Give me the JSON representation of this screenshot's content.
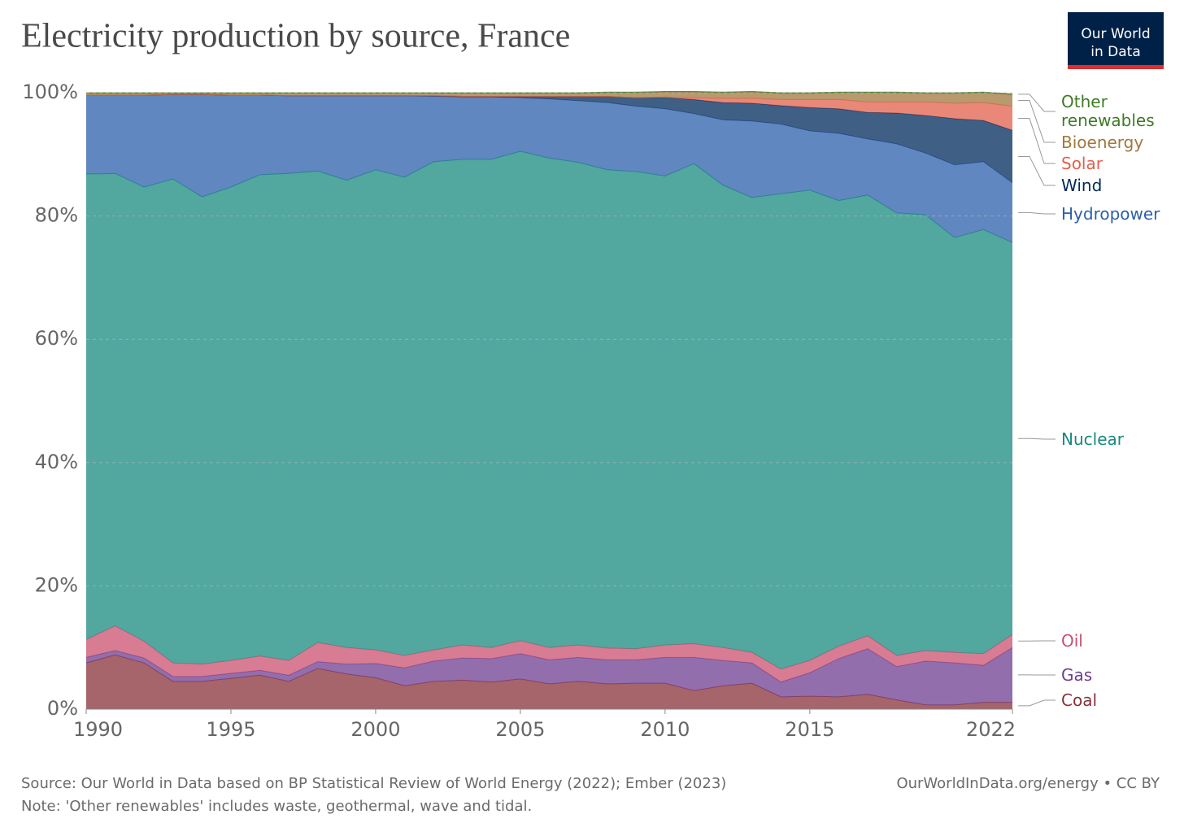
{
  "chart_data": {
    "type": "stacked_area",
    "title": "Electricity production by source, France",
    "logo": [
      "Our World",
      "in Data"
    ],
    "source": "Source: Our World in Data based on BP Statistical Review of World Energy (2022); Ember (2023)",
    "note": "Note: 'Other renewables' includes waste, geothermal, wave and tidal.",
    "credit": "OurWorldInData.org/energy • CC BY",
    "x": [
      1990,
      1991,
      1992,
      1993,
      1994,
      1995,
      1996,
      1997,
      1998,
      1999,
      2000,
      2001,
      2002,
      2003,
      2004,
      2005,
      2006,
      2007,
      2008,
      2009,
      2010,
      2011,
      2012,
      2013,
      2014,
      2015,
      2016,
      2017,
      2018,
      2019,
      2020,
      2021,
      2022
    ],
    "xlim": [
      1990,
      2022
    ],
    "xticks": [
      1990,
      1995,
      2000,
      2005,
      2010,
      2015,
      2022
    ],
    "ylim": [
      0,
      100
    ],
    "yticks": [
      {
        "value": 0,
        "label": "0%"
      },
      {
        "value": 20,
        "label": "20%"
      },
      {
        "value": 40,
        "label": "40%"
      },
      {
        "value": 60,
        "label": "60%"
      },
      {
        "value": 80,
        "label": "80%"
      },
      {
        "value": 100,
        "label": "100%"
      }
    ],
    "grid": true,
    "series": [
      {
        "name": "Coal",
        "color": "#883039",
        "values": [
          7.5,
          8.8,
          7.5,
          4.5,
          4.5,
          5.0,
          5.5,
          4.5,
          6.6,
          5.7,
          5.1,
          3.8,
          4.5,
          4.7,
          4.4,
          4.9,
          4.1,
          4.5,
          4.1,
          4.2,
          4.2,
          3.0,
          3.8,
          4.2,
          2.0,
          2.1,
          2.0,
          2.4,
          1.5,
          0.7,
          0.7,
          1.1,
          1.1
        ]
      },
      {
        "name": "Gas",
        "color": "#6d3e91",
        "values": [
          0.9,
          0.7,
          0.8,
          0.8,
          0.8,
          0.8,
          0.8,
          1.0,
          1.1,
          1.6,
          2.3,
          2.9,
          3.3,
          3.6,
          3.8,
          4.1,
          3.9,
          3.9,
          3.9,
          3.8,
          4.2,
          5.4,
          4.1,
          3.3,
          2.4,
          3.8,
          6.2,
          7.4,
          5.4,
          7.1,
          6.8,
          6.0,
          8.9
        ]
      },
      {
        "name": "Oil",
        "color": "#c9506f",
        "values": [
          2.9,
          4.0,
          2.7,
          2.2,
          2.0,
          2.1,
          2.3,
          2.4,
          3.1,
          2.7,
          2.2,
          2.0,
          1.8,
          2.1,
          1.8,
          2.1,
          2.0,
          2.0,
          1.9,
          1.8,
          2.0,
          2.2,
          2.1,
          1.7,
          2.1,
          2.0,
          2.0,
          2.1,
          1.8,
          1.7,
          1.7,
          1.9,
          2.1
        ]
      },
      {
        "name": "Nuclear",
        "color": "#18897f",
        "values": [
          75.5,
          73.4,
          73.7,
          78.5,
          75.8,
          76.8,
          78.1,
          79.0,
          76.5,
          75.8,
          77.9,
          77.6,
          79.2,
          78.8,
          79.2,
          79.4,
          79.4,
          78.3,
          77.6,
          77.4,
          76.1,
          77.9,
          75.0,
          73.8,
          77.1,
          76.3,
          72.3,
          71.5,
          71.8,
          70.7,
          67.3,
          68.8,
          63.6
        ]
      },
      {
        "name": "Hydropower",
        "color": "#2c5fab",
        "values": [
          12.8,
          12.7,
          14.9,
          13.7,
          16.6,
          14.9,
          12.9,
          12.6,
          12.2,
          13.7,
          12.0,
          13.2,
          10.6,
          10.1,
          10.1,
          8.7,
          9.6,
          10.0,
          10.9,
          10.6,
          10.9,
          8.1,
          10.6,
          12.4,
          11.3,
          9.6,
          10.9,
          9.1,
          11.2,
          10.0,
          11.8,
          11.0,
          9.7
        ]
      },
      {
        "name": "Wind",
        "color": "#00295b",
        "values": [
          0,
          0,
          0,
          0,
          0,
          0,
          0,
          0,
          0,
          0,
          0,
          0,
          0.1,
          0.1,
          0.1,
          0.2,
          0.4,
          0.7,
          1.0,
          1.4,
          1.8,
          2.3,
          2.8,
          2.9,
          3.0,
          3.8,
          4.0,
          4.3,
          5.0,
          6.1,
          7.5,
          6.7,
          8.5
        ]
      },
      {
        "name": "Solar",
        "color": "#e2604b",
        "values": [
          0,
          0,
          0,
          0,
          0,
          0,
          0,
          0,
          0,
          0,
          0,
          0,
          0,
          0,
          0,
          0,
          0,
          0,
          0,
          0,
          0.1,
          0.3,
          0.7,
          0.8,
          1.0,
          1.3,
          1.5,
          1.7,
          1.8,
          2.2,
          2.5,
          2.9,
          3.9
        ]
      },
      {
        "name": "Bioenergy",
        "color": "#a2773e",
        "values": [
          0.3,
          0.3,
          0.3,
          0.2,
          0.2,
          0.3,
          0.3,
          0.4,
          0.4,
          0.4,
          0.4,
          0.4,
          0.4,
          0.5,
          0.5,
          0.5,
          0.5,
          0.5,
          0.6,
          0.8,
          0.8,
          0.9,
          0.9,
          1.0,
          1.0,
          1.0,
          1.1,
          1.5,
          1.5,
          1.4,
          1.6,
          1.6,
          1.9
        ]
      },
      {
        "name": "Other renewables",
        "color": "#3f7a26",
        "values": [
          0.1,
          0.1,
          0.1,
          0.1,
          0.1,
          0.1,
          0.1,
          0.1,
          0.1,
          0.1,
          0.1,
          0.1,
          0.1,
          0.1,
          0.1,
          0.1,
          0.1,
          0.1,
          0.1,
          0.1,
          0.1,
          0.1,
          0.1,
          0.1,
          0.1,
          0.1,
          0.1,
          0.1,
          0.1,
          0.1,
          0.1,
          0.1,
          0.1
        ]
      }
    ]
  }
}
